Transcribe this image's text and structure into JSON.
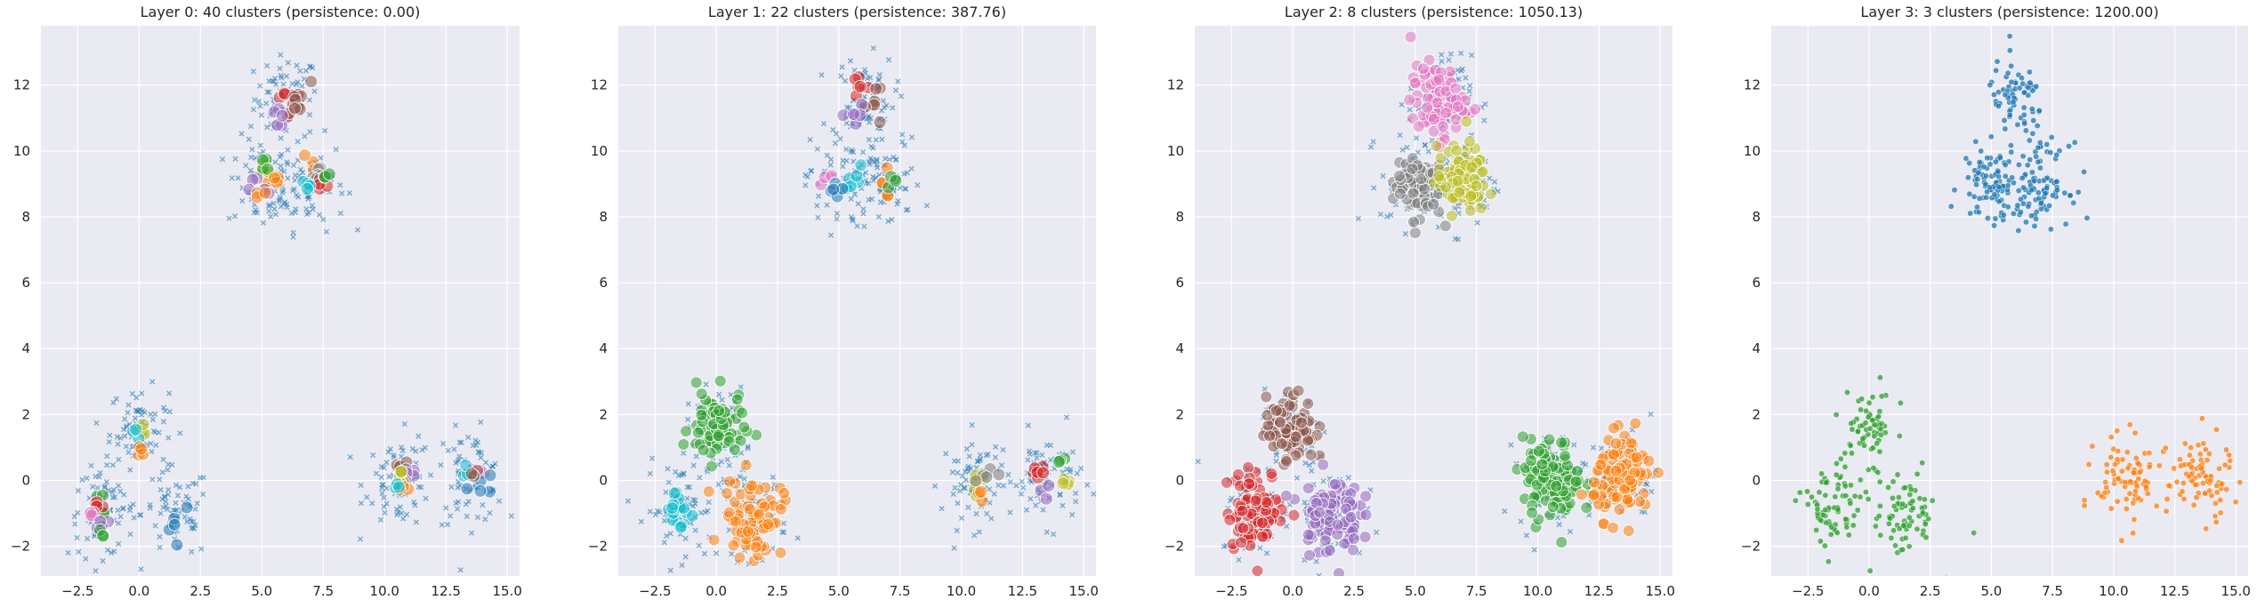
{
  "chart_data": [
    {
      "type": "scatter",
      "title": "Layer 0: 40 clusters (persistence: 0.00)",
      "xlabel": "",
      "ylabel": "",
      "xlim": [
        -4.0,
        15.5
      ],
      "ylim": [
        -2.9,
        13.8
      ],
      "xticks": [
        "−2.5",
        "0.0",
        "2.5",
        "5.0",
        "7.5",
        "10.0",
        "12.5",
        "15.0"
      ],
      "yticks": [
        "−2",
        "0",
        "2",
        "4",
        "6",
        "8",
        "10",
        "12"
      ],
      "grid": true,
      "legend": "none",
      "noise_color": "#1f77b4",
      "groups": [
        {
          "color": "#d62728",
          "cx": 5.9,
          "cy": 11.6,
          "count": 7,
          "spread": 0.25
        },
        {
          "color": "#8c564b",
          "cx": 6.4,
          "cy": 11.5,
          "count": 8,
          "spread": 0.3
        },
        {
          "color": "#9467bd",
          "cx": 5.7,
          "cy": 11.0,
          "count": 5,
          "spread": 0.2
        },
        {
          "color": "#bcbd22",
          "cx": 5.0,
          "cy": 9.3,
          "count": 5,
          "spread": 0.2
        },
        {
          "color": "#2ca02c",
          "cx": 5.1,
          "cy": 9.5,
          "count": 4,
          "spread": 0.15
        },
        {
          "color": "#ff7f0e",
          "cx": 5.6,
          "cy": 9.0,
          "count": 5,
          "spread": 0.2
        },
        {
          "color": "#9467bd",
          "cx": 4.9,
          "cy": 8.9,
          "count": 5,
          "spread": 0.2
        },
        {
          "color": "#ff7f0e",
          "cx": 4.9,
          "cy": 8.6,
          "count": 3,
          "spread": 0.15
        },
        {
          "color": "#ff7f0e",
          "cx": 7.0,
          "cy": 9.7,
          "count": 3,
          "spread": 0.15
        },
        {
          "color": "#7f7f7f",
          "cx": 7.3,
          "cy": 9.2,
          "count": 7,
          "spread": 0.25
        },
        {
          "color": "#d62728",
          "cx": 7.4,
          "cy": 9.0,
          "count": 4,
          "spread": 0.15
        },
        {
          "color": "#17becf",
          "cx": 6.9,
          "cy": 8.9,
          "count": 5,
          "spread": 0.2
        },
        {
          "color": "#2ca02c",
          "cx": 7.5,
          "cy": 9.3,
          "count": 3,
          "spread": 0.15
        },
        {
          "color": "#bcbd22",
          "cx": 0.1,
          "cy": 1.5,
          "count": 4,
          "spread": 0.15
        },
        {
          "color": "#17becf",
          "cx": -0.1,
          "cy": 1.4,
          "count": 3,
          "spread": 0.15
        },
        {
          "color": "#ff7f0e",
          "cx": 0.1,
          "cy": 0.9,
          "count": 4,
          "spread": 0.15
        },
        {
          "color": "#2ca02c",
          "cx": -1.4,
          "cy": -0.7,
          "count": 5,
          "spread": 0.2
        },
        {
          "color": "#d62728",
          "cx": -1.8,
          "cy": -0.7,
          "count": 4,
          "spread": 0.15
        },
        {
          "color": "#e377c2",
          "cx": -1.9,
          "cy": -1.1,
          "count": 4,
          "spread": 0.15
        },
        {
          "color": "#9467bd",
          "cx": -1.5,
          "cy": -1.2,
          "count": 4,
          "spread": 0.15
        },
        {
          "color": "#2ca02c",
          "cx": -1.5,
          "cy": -1.6,
          "count": 3,
          "spread": 0.1
        },
        {
          "color": "#1f77b4",
          "cx": 1.6,
          "cy": -1.1,
          "count": 5,
          "spread": 0.3
        },
        {
          "color": "#8c564b",
          "cx": 10.6,
          "cy": 0.4,
          "count": 5,
          "spread": 0.2
        },
        {
          "color": "#9467bd",
          "cx": 11.1,
          "cy": 0.3,
          "count": 5,
          "spread": 0.2
        },
        {
          "color": "#bcbd22",
          "cx": 10.7,
          "cy": -0.1,
          "count": 5,
          "spread": 0.2
        },
        {
          "color": "#ff7f0e",
          "cx": 10.9,
          "cy": -0.3,
          "count": 3,
          "spread": 0.15
        },
        {
          "color": "#17becf",
          "cx": 10.4,
          "cy": -0.2,
          "count": 3,
          "spread": 0.15
        },
        {
          "color": "#e377c2",
          "cx": 14.0,
          "cy": 0.3,
          "count": 3,
          "spread": 0.15
        },
        {
          "color": "#17becf",
          "cx": 13.2,
          "cy": 0.1,
          "count": 4,
          "spread": 0.2
        },
        {
          "color": "#1f77b4",
          "cx": 13.9,
          "cy": -0.1,
          "count": 5,
          "spread": 0.25
        },
        {
          "color": "#8c564b",
          "cx": 13.6,
          "cy": 0.3,
          "count": 3,
          "spread": 0.15
        }
      ]
    },
    {
      "type": "scatter",
      "title": "Layer 1: 22 clusters (persistence: 387.76)",
      "xlabel": "",
      "ylabel": "",
      "xlim": [
        -4.0,
        15.5
      ],
      "ylim": [
        -2.9,
        13.8
      ],
      "xticks": [
        "−2.5",
        "0.0",
        "2.5",
        "5.0",
        "7.5",
        "10.0",
        "12.5",
        "15.0"
      ],
      "yticks": [
        "−2",
        "0",
        "2",
        "4",
        "6",
        "8",
        "10",
        "12"
      ],
      "grid": true,
      "legend": "none",
      "noise_color": "#1f77b4",
      "groups": [
        {
          "color": "#d62728",
          "cx": 5.9,
          "cy": 11.7,
          "count": 6,
          "spread": 0.2
        },
        {
          "color": "#8c564b",
          "cx": 6.4,
          "cy": 11.5,
          "count": 7,
          "spread": 0.25
        },
        {
          "color": "#9467bd",
          "cx": 5.8,
          "cy": 11.1,
          "count": 6,
          "spread": 0.25
        },
        {
          "color": "#e377c2",
          "cx": 4.8,
          "cy": 9.1,
          "count": 5,
          "spread": 0.2
        },
        {
          "color": "#17becf",
          "cx": 5.5,
          "cy": 9.0,
          "count": 7,
          "spread": 0.25
        },
        {
          "color": "#1f77b4",
          "cx": 5.0,
          "cy": 8.7,
          "count": 4,
          "spread": 0.2
        },
        {
          "color": "#ff7f0e",
          "cx": 6.8,
          "cy": 8.9,
          "count": 5,
          "spread": 0.2
        },
        {
          "color": "#2ca02c",
          "cx": 7.2,
          "cy": 9.1,
          "count": 4,
          "spread": 0.15
        },
        {
          "color": "#2ca02c",
          "cx": 0.0,
          "cy": 1.6,
          "count": 75,
          "spread": 0.55
        },
        {
          "color": "#ff7f0e",
          "cx": 1.5,
          "cy": -1.1,
          "count": 75,
          "spread": 0.6
        },
        {
          "color": "#17becf",
          "cx": -1.5,
          "cy": -0.9,
          "count": 18,
          "spread": 0.35
        },
        {
          "color": "#bcbd22",
          "cx": 10.6,
          "cy": 0.1,
          "count": 7,
          "spread": 0.25
        },
        {
          "color": "#7f7f7f",
          "cx": 11.1,
          "cy": 0.3,
          "count": 5,
          "spread": 0.2
        },
        {
          "color": "#ff7f0e",
          "cx": 10.6,
          "cy": -0.3,
          "count": 3,
          "spread": 0.15
        },
        {
          "color": "#d62728",
          "cx": 13.1,
          "cy": 0.1,
          "count": 7,
          "spread": 0.25
        },
        {
          "color": "#2ca02c",
          "cx": 13.9,
          "cy": 0.5,
          "count": 3,
          "spread": 0.15
        },
        {
          "color": "#bcbd22",
          "cx": 14.1,
          "cy": -0.2,
          "count": 4,
          "spread": 0.15
        },
        {
          "color": "#9467bd",
          "cx": 13.6,
          "cy": -0.3,
          "count": 3,
          "spread": 0.15
        }
      ]
    },
    {
      "type": "scatter",
      "title": "Layer 2: 8 clusters (persistence: 1050.13)",
      "xlabel": "",
      "ylabel": "",
      "xlim": [
        -4.0,
        15.5
      ],
      "ylim": [
        -2.9,
        13.8
      ],
      "xticks": [
        "−2.5",
        "0.0",
        "2.5",
        "5.0",
        "7.5",
        "10.0",
        "12.5",
        "15.0"
      ],
      "yticks": [
        "−2",
        "0",
        "2",
        "4",
        "6",
        "8",
        "10",
        "12"
      ],
      "grid": true,
      "legend": "none",
      "noise_color": "#1f77b4",
      "groups": [
        {
          "color": "#e377c2",
          "cx": 5.9,
          "cy": 11.5,
          "count": 90,
          "spread": 0.55
        },
        {
          "color": "#7f7f7f",
          "cx": 5.1,
          "cy": 9.0,
          "count": 95,
          "spread": 0.5
        },
        {
          "color": "#bcbd22",
          "cx": 6.9,
          "cy": 9.1,
          "count": 95,
          "spread": 0.5
        },
        {
          "color": "#8c564b",
          "cx": -0.1,
          "cy": 1.6,
          "count": 85,
          "spread": 0.5
        },
        {
          "color": "#d62728",
          "cx": -1.5,
          "cy": -0.9,
          "count": 95,
          "spread": 0.6
        },
        {
          "color": "#9467bd",
          "cx": 1.5,
          "cy": -1.0,
          "count": 95,
          "spread": 0.6
        },
        {
          "color": "#2ca02c",
          "cx": 10.6,
          "cy": 0.0,
          "count": 110,
          "spread": 0.6
        },
        {
          "color": "#ff7f0e",
          "cx": 13.5,
          "cy": 0.1,
          "count": 110,
          "spread": 0.6
        }
      ]
    },
    {
      "type": "scatter",
      "title": "Layer 3: 3 clusters (persistence: 1200.00)",
      "xlabel": "",
      "ylabel": "",
      "xlim": [
        -4.0,
        15.5
      ],
      "ylim": [
        -2.9,
        13.8
      ],
      "xticks": [
        "−2.5",
        "0.0",
        "2.5",
        "5.0",
        "7.5",
        "10.0",
        "12.5",
        "15.0"
      ],
      "yticks": [
        "−2",
        "0",
        "2",
        "4",
        "6",
        "8",
        "10",
        "12"
      ],
      "grid": true,
      "legend": "none",
      "groups": [
        {
          "color": "#1f77b4",
          "cx": 6.0,
          "cy": 11.5,
          "count": 70,
          "spread": 0.6
        },
        {
          "color": "#1f77b4",
          "cx": 5.0,
          "cy": 9.0,
          "count": 95,
          "spread": 0.6
        },
        {
          "color": "#1f77b4",
          "cx": 7.0,
          "cy": 9.0,
          "count": 95,
          "spread": 0.6
        },
        {
          "color": "#2ca02c",
          "cx": 0.0,
          "cy": 1.6,
          "count": 65,
          "spread": 0.55
        },
        {
          "color": "#2ca02c",
          "cx": -1.5,
          "cy": -0.9,
          "count": 75,
          "spread": 0.65
        },
        {
          "color": "#2ca02c",
          "cx": 1.5,
          "cy": -1.0,
          "count": 75,
          "spread": 0.65
        },
        {
          "color": "#ff7f0e",
          "cx": 10.6,
          "cy": 0.0,
          "count": 85,
          "spread": 0.65
        },
        {
          "color": "#ff7f0e",
          "cx": 13.5,
          "cy": 0.1,
          "count": 85,
          "spread": 0.65
        }
      ]
    }
  ],
  "noise_groups": [
    {
      "cx": 6.0,
      "cy": 11.6,
      "spread": 0.65
    },
    {
      "cx": 5.0,
      "cy": 9.0,
      "spread": 0.7
    },
    {
      "cx": 7.0,
      "cy": 9.0,
      "spread": 0.7
    },
    {
      "cx": 0.0,
      "cy": 1.6,
      "spread": 0.6
    },
    {
      "cx": -1.5,
      "cy": -0.9,
      "spread": 0.7
    },
    {
      "cx": 1.5,
      "cy": -1.0,
      "spread": 0.7
    },
    {
      "cx": 10.6,
      "cy": 0.0,
      "spread": 0.7
    },
    {
      "cx": 13.5,
      "cy": 0.1,
      "spread": 0.7
    }
  ]
}
